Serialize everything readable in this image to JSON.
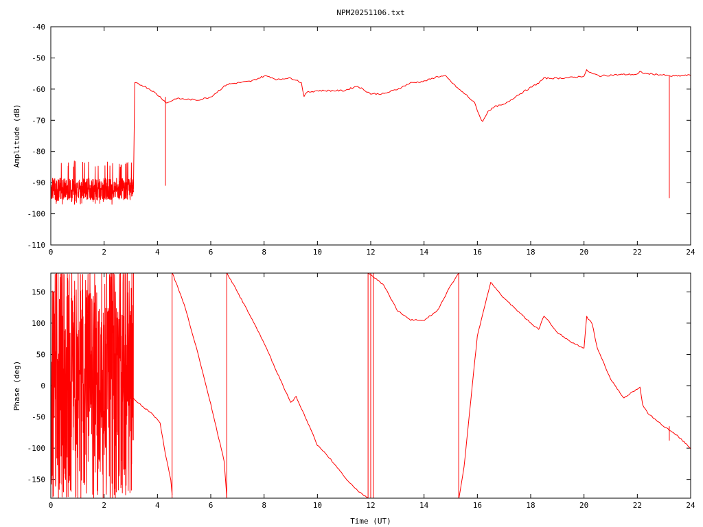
{
  "figure": {
    "title": "NPM20251106.txt"
  },
  "colors": {
    "trace": "#ff0000",
    "axes": "#000000",
    "background": "#ffffff"
  },
  "chart_data": [
    {
      "type": "line",
      "title": "NPM20251106.txt",
      "xlabel": "",
      "ylabel": "Amplitude (dB)",
      "xlim": [
        0,
        24
      ],
      "ylim": [
        -110,
        -40
      ],
      "xticks": [
        0,
        2,
        4,
        6,
        8,
        10,
        12,
        14,
        16,
        18,
        20,
        22,
        24
      ],
      "yticks": [
        -40,
        -50,
        -60,
        -70,
        -80,
        -90,
        -100,
        -110
      ],
      "xtick_labels": [
        "0",
        "2",
        "4",
        "6",
        "8",
        "10",
        "12",
        "14",
        "16",
        "18",
        "20",
        "22",
        "24"
      ],
      "ytick_labels": [
        "-40",
        "-50",
        "-60",
        "-70",
        "-80",
        "-90",
        "-100",
        "-110"
      ],
      "grid": false,
      "series": [
        {
          "noise_band": {
            "x": [
              0,
              3.1
            ],
            "center": -92,
            "spread": 3.5,
            "spikes_up_to": -83,
            "spikes_down_to": -97
          },
          "spikes": [
            {
              "x": 4.3,
              "to": -91
            },
            {
              "x": 23.2,
              "to": -95
            }
          ],
          "x": [
            3.1,
            3.15,
            3.5,
            3.8,
            4.1,
            4.35,
            4.7,
            5.0,
            5.5,
            6.0,
            6.3,
            6.6,
            7.0,
            7.5,
            7.8,
            8.0,
            8.2,
            8.5,
            8.8,
            9.0,
            9.2,
            9.4,
            9.5,
            9.6,
            10.0,
            10.5,
            11.0,
            11.5,
            12.0,
            12.5,
            13.0,
            13.5,
            14.0,
            14.5,
            14.8,
            15.0,
            15.3,
            15.6,
            15.9,
            16.1,
            16.2,
            16.4,
            16.7,
            17.0,
            17.5,
            18.0,
            18.3,
            18.5,
            19.0,
            19.5,
            20.0,
            20.1,
            20.3,
            20.6,
            21.0,
            21.5,
            22.0,
            22.1,
            22.3,
            22.6,
            23.0,
            23.2,
            23.5,
            24.0
          ],
          "values": [
            -92,
            -58,
            -59,
            -60.5,
            -62.5,
            -64.5,
            -63,
            -63.2,
            -63.5,
            -62.5,
            -60.5,
            -58.5,
            -58,
            -57.5,
            -56.5,
            -55.8,
            -56,
            -57,
            -56.5,
            -56.5,
            -57,
            -58,
            -62.5,
            -61,
            -60.5,
            -60.5,
            -60.5,
            -59,
            -61.5,
            -61.5,
            -60,
            -58,
            -57.5,
            -56,
            -55.8,
            -57.5,
            -60,
            -62,
            -64.5,
            -69,
            -70.5,
            -67,
            -65.5,
            -65,
            -62,
            -59.5,
            -58,
            -56.5,
            -56.5,
            -56.3,
            -55.8,
            -54,
            -55,
            -55.8,
            -55.5,
            -55.3,
            -55.3,
            -54.5,
            -55,
            -55.2,
            -55.5,
            -55.8,
            -55.8,
            -55.5
          ]
        }
      ]
    },
    {
      "type": "line",
      "title": "",
      "xlabel": "Time (UT)",
      "ylabel": "Phase (deg)",
      "xlim": [
        0,
        24
      ],
      "ylim": [
        -180,
        180
      ],
      "xticks": [
        0,
        2,
        4,
        6,
        8,
        10,
        12,
        14,
        16,
        18,
        20,
        22,
        24
      ],
      "yticks": [
        150,
        100,
        50,
        0,
        -50,
        -100,
        -150
      ],
      "xtick_labels": [
        "0",
        "2",
        "4",
        "6",
        "8",
        "10",
        "12",
        "14",
        "16",
        "18",
        "20",
        "22",
        "24"
      ],
      "ytick_labels": [
        "150",
        "100",
        "50",
        "0",
        "-50",
        "-100",
        "-150"
      ],
      "grid": false,
      "series": [
        {
          "noise_band": {
            "x": [
              0,
              3.1
            ],
            "center": 0,
            "spread": 180,
            "spikes_up_to": 180,
            "spikes_down_to": -180
          },
          "spikes": [
            {
              "x": 23.2,
              "to": -88
            }
          ],
          "wrap_lines": [
            4.55,
            6.6,
            11.9,
            12.0,
            12.1,
            15.3
          ],
          "x": [
            3.1,
            3.2,
            3.5,
            3.8,
            4.1,
            4.3,
            4.5,
            4.55,
            4.56,
            5.0,
            5.5,
            6.0,
            6.5,
            6.6,
            6.61,
            7.0,
            7.5,
            8.0,
            8.5,
            9.0,
            9.2,
            9.3,
            9.6,
            10.0,
            10.5,
            11.0,
            11.5,
            11.9,
            11.91,
            12.0,
            12.5,
            13.0,
            13.5,
            14.0,
            14.5,
            15.0,
            15.3,
            15.31,
            15.5,
            16.0,
            16.5,
            17.0,
            17.5,
            18.0,
            18.3,
            18.5,
            19.0,
            19.5,
            20.0,
            20.1,
            20.3,
            20.5,
            21.0,
            21.5,
            22.0,
            22.1,
            22.2,
            22.4,
            23.0,
            23.5,
            24.0
          ],
          "values": [
            -20,
            -25,
            -35,
            -45,
            -60,
            -110,
            -150,
            -175,
            180,
            130,
            55,
            -30,
            -120,
            -178,
            180,
            150,
            110,
            68,
            20,
            -27,
            -18,
            -28,
            -55,
            -95,
            -118,
            -145,
            -168,
            -180,
            180,
            178,
            160,
            120,
            105,
            105,
            120,
            160,
            180,
            -180,
            -130,
            80,
            165,
            140,
            120,
            100,
            90,
            112,
            85,
            70,
            60,
            110,
            100,
            60,
            10,
            -20,
            -5,
            -3,
            -30,
            -45,
            -65,
            -80,
            -100
          ]
        }
      ]
    }
  ]
}
